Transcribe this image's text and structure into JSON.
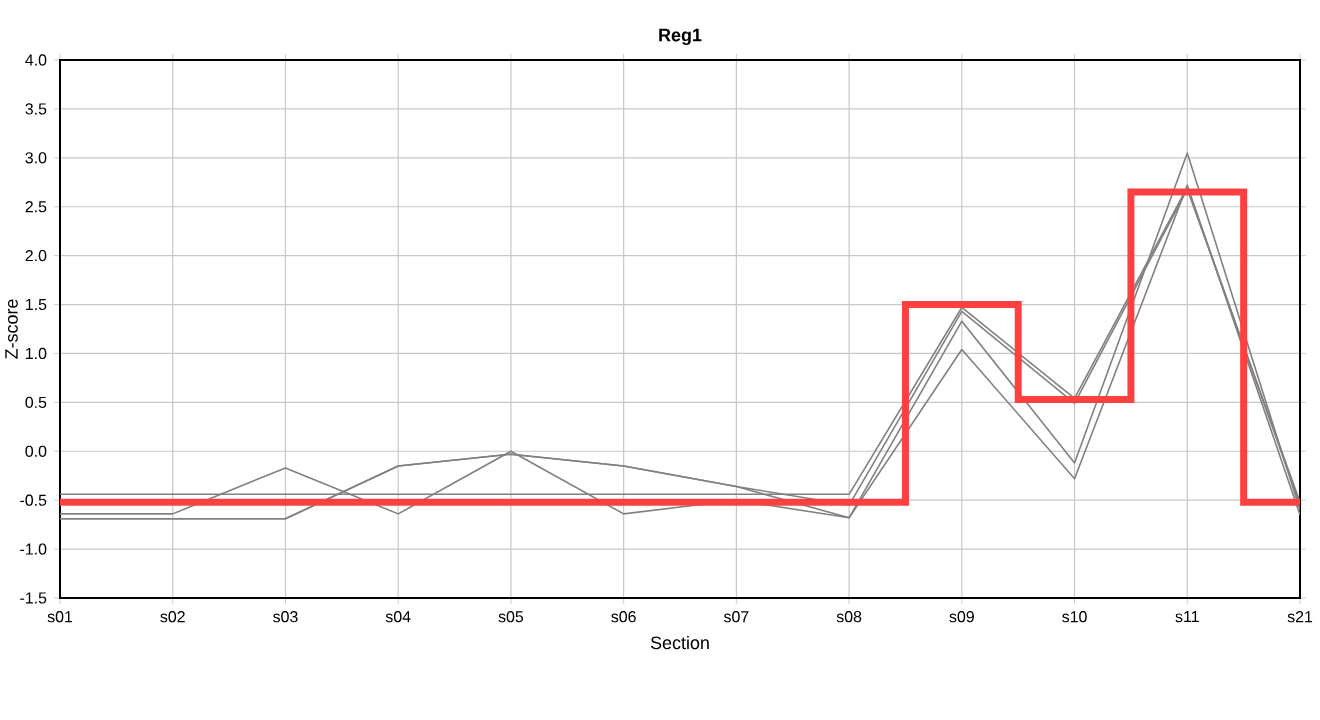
{
  "chart_data": {
    "type": "line",
    "title": "Reg1",
    "xlabel": "Section",
    "ylabel": "Z-score",
    "categories": [
      "s01",
      "s02",
      "s03",
      "s04",
      "s05",
      "s06",
      "s07",
      "s08",
      "s09",
      "s10",
      "s11",
      "s21"
    ],
    "series": [
      {
        "color": "#808080",
        "values": [
          -0.44,
          -0.44,
          -0.44,
          -0.44,
          -0.44,
          -0.44,
          -0.44,
          -0.44,
          1.47,
          0.54,
          2.7,
          -0.55
        ]
      },
      {
        "color": "#808080",
        "values": [
          -0.64,
          -0.64,
          -0.17,
          -0.64,
          0,
          -0.64,
          -0.5,
          -0.68,
          1.33,
          -0.12,
          3.05,
          -0.6
        ]
      },
      {
        "color": "#808080",
        "values": [
          -0.69,
          -0.69,
          -0.69,
          -0.15,
          -0.03,
          -0.15,
          -0.36,
          -0.68,
          1.04,
          -0.28,
          2.72,
          -0.65
        ]
      },
      {
        "color": "#808080",
        "values": [
          -0.69,
          -0.69,
          -0.69,
          -0.15,
          -0.03,
          -0.15,
          -0.36,
          -0.55,
          1.43,
          0.49,
          2.68,
          -0.52
        ]
      },
      {
        "type": "step",
        "color": "#ff4040",
        "values": [
          -0.52,
          -0.52,
          -0.52,
          -0.52,
          -0.52,
          -0.52,
          -0.52,
          -0.52,
          1.5,
          0.53,
          2.65,
          -0.52
        ]
      }
    ],
    "ylim": [
      -1.5,
      4.0
    ],
    "yticks": [
      {
        "value": -1.5,
        "label": "-1.5"
      },
      {
        "value": -1.0,
        "label": "-1.0"
      },
      {
        "value": -0.5,
        "label": "-0.5"
      },
      {
        "value": 0,
        "label": "0.0"
      },
      {
        "value": 0.5,
        "label": "0.5"
      },
      {
        "value": 1.0,
        "label": "1.0"
      },
      {
        "value": 1.5,
        "label": "1.5"
      },
      {
        "value": 2.0,
        "label": "2.0"
      },
      {
        "value": 2.5,
        "label": "2.5"
      },
      {
        "value": 3.0,
        "label": "3.0"
      },
      {
        "value": 3.5,
        "label": "3.5"
      },
      {
        "value": 4.0,
        "label": "4.0"
      }
    ],
    "grid": true,
    "marker": "none",
    "line_style": "solid"
  }
}
